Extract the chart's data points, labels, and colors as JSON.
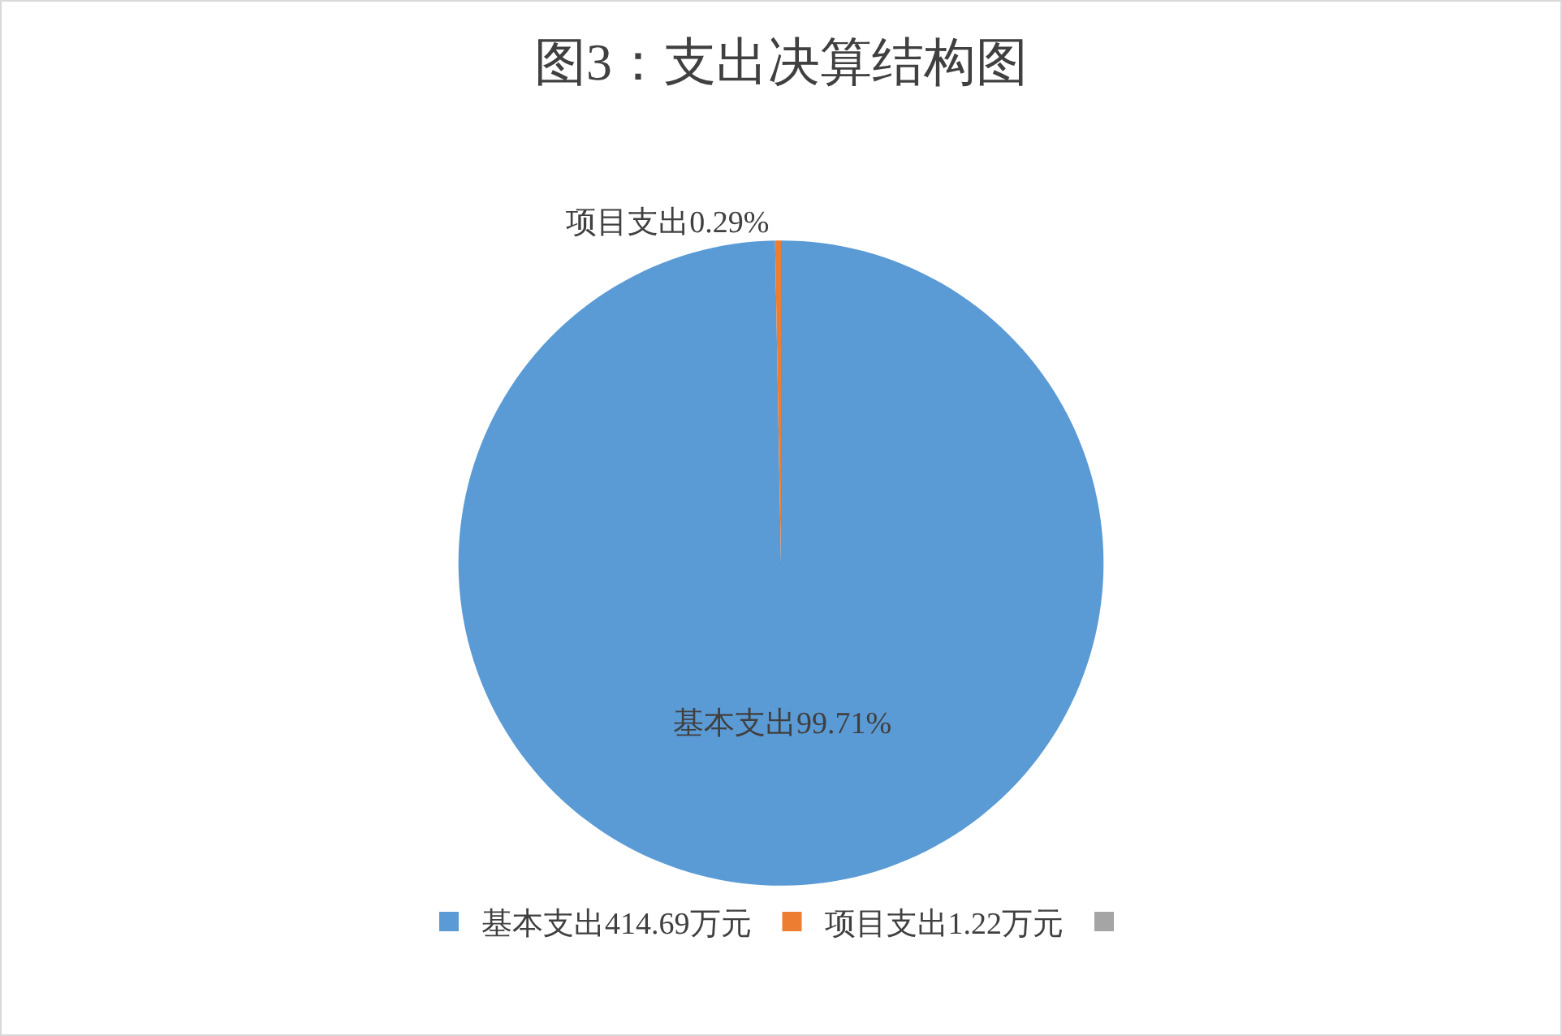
{
  "chart_data": {
    "type": "pie",
    "title": "图3：支出决算结构图",
    "categories": [
      "基本支出414.69万元",
      "项目支出1.22万元",
      null
    ],
    "values": [
      414.69,
      1.22,
      0
    ],
    "colors": [
      "#5b9bd5",
      "#ed7d31",
      "#a5a5a5"
    ],
    "value_labels": [
      "基本支出99.71%",
      "项目支出0.29%",
      null
    ],
    "legend": "bottom"
  }
}
